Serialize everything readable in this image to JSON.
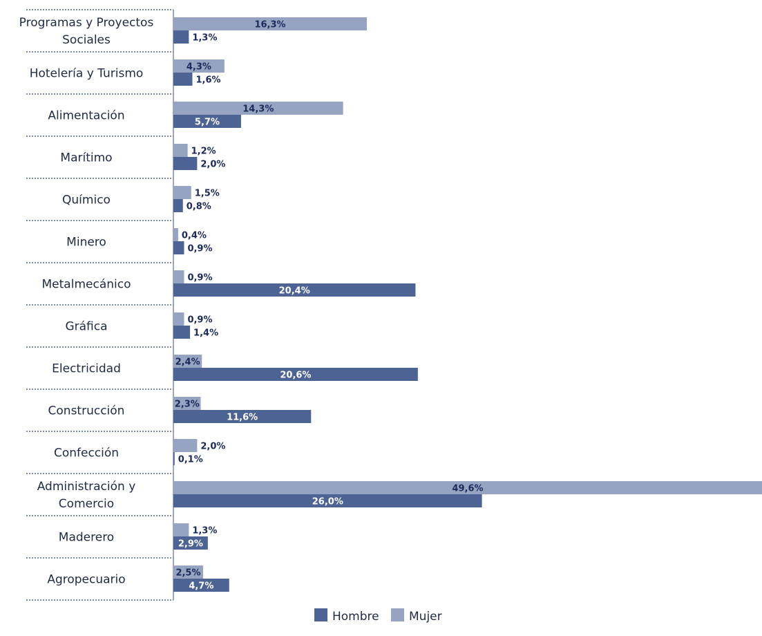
{
  "chart_data": {
    "type": "bar",
    "orientation": "horizontal",
    "categories": [
      "Programas y Proyectos Sociales",
      "Hotelería y Turismo",
      "Alimentación",
      "Marítimo",
      "Químico",
      "Minero",
      "Metalmecánico",
      "Gráfica",
      "Electricidad",
      "Construcción",
      "Confección",
      "Administración y Comercio",
      "Maderero",
      "Agropecuario"
    ],
    "category_lines": [
      [
        "Programas y Proyectos",
        "Sociales"
      ],
      [
        "Hotelería y Turismo"
      ],
      [
        "Alimentación"
      ],
      [
        "Marítimo"
      ],
      [
        "Químico"
      ],
      [
        "Minero"
      ],
      [
        "Metalmecánico"
      ],
      [
        "Gráfica"
      ],
      [
        "Electricidad"
      ],
      [
        "Construcción"
      ],
      [
        "Confección"
      ],
      [
        "Administración y",
        "Comercio"
      ],
      [
        "Maderero"
      ],
      [
        "Agropecuario"
      ]
    ],
    "series": [
      {
        "name": "Mujer",
        "color": "#96a3c1",
        "values": [
          16.3,
          4.3,
          14.3,
          1.2,
          1.5,
          0.4,
          0.9,
          0.9,
          2.4,
          2.3,
          2.0,
          49.6,
          1.3,
          2.5
        ],
        "labels": [
          "16,3%",
          "4,3%",
          "14,3%",
          "1,2%",
          "1,5%",
          "0,4%",
          "0,9%",
          "0,9%",
          "2,4%",
          "2,3%",
          "2,0%",
          "49,6%",
          "1,3%",
          "2,5%"
        ]
      },
      {
        "name": "Hombre",
        "color": "#4d6394",
        "values": [
          1.3,
          1.6,
          5.7,
          2.0,
          0.8,
          0.9,
          20.4,
          1.4,
          20.6,
          11.6,
          0.1,
          26.0,
          2.9,
          4.7
        ],
        "labels": [
          "1,3%",
          "1,6%",
          "5,7%",
          "2,0%",
          "0,8%",
          "0,9%",
          "20,4%",
          "1,4%",
          "20,6%",
          "11,6%",
          "0,1%",
          "26,0%",
          "2,9%",
          "4,7%"
        ]
      }
    ],
    "xlim": [
      0,
      49.6
    ],
    "legend": {
      "position": "bottom",
      "items": [
        {
          "name": "Hombre",
          "color": "#4d6394"
        },
        {
          "name": "Mujer",
          "color": "#96a3c1"
        }
      ]
    },
    "colors": {
      "separator": "#7d8aab",
      "label_dark": "#1b2a5a",
      "label_light": "#ffffff"
    }
  }
}
